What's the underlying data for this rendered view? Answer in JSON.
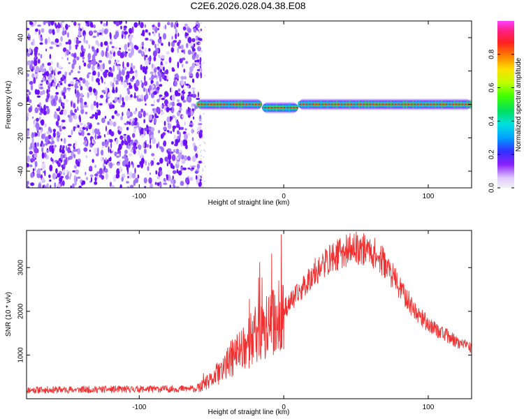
{
  "page_title": "C2E6.2026.028.04.38.E08",
  "colors": {
    "snr_line": "#f03030",
    "spectrum_ridge": "#ff1010"
  },
  "chart_data": [
    {
      "id": "spectrogram",
      "type": "heatmap",
      "title": "C2E6.2026.028.04.38.E08",
      "xlabel": "Height of straight line (km)",
      "ylabel": "Frequency (Hz)",
      "xlim": [
        -178,
        130
      ],
      "ylim": [
        -50,
        50
      ],
      "x_ticks": [
        -100,
        0,
        100
      ],
      "y_ticks": [
        -40,
        -20,
        0,
        20,
        40
      ],
      "noise_region_x": [
        -178,
        -60
      ],
      "ridge": {
        "x_start": -60,
        "x_end": 130,
        "segments": [
          {
            "x": [
              -60,
              -15
            ],
            "freq": 0
          },
          {
            "x": [
              -15,
              10
            ],
            "freq": -2
          },
          {
            "x": [
              10,
              130
            ],
            "freq": 0
          }
        ]
      },
      "colorbar": {
        "label": "Normalized spectral amplitude",
        "range": [
          0.0,
          1.0
        ],
        "ticks": [
          0.0,
          0.2,
          0.4,
          0.6,
          0.8
        ]
      }
    },
    {
      "id": "snr",
      "type": "line",
      "xlabel": "Height of straight line (km)",
      "ylabel": "SNR (10 * v/v)",
      "xlim": [
        -178,
        130
      ],
      "ylim": [
        0,
        3850
      ],
      "x_ticks": [
        -100,
        0,
        100
      ],
      "y_ticks": [
        1000,
        2000,
        3000
      ],
      "series": [
        {
          "name": "SNR",
          "envelope_x": [
            -178,
            -60,
            -50,
            -40,
            -30,
            -20,
            -10,
            0,
            10,
            20,
            30,
            40,
            50,
            60,
            70,
            80,
            90,
            100,
            110,
            120,
            130
          ],
          "envelope_y": [
            200,
            230,
            450,
            800,
            1200,
            1500,
            1750,
            2050,
            2400,
            2850,
            3150,
            3350,
            3450,
            3400,
            3100,
            2550,
            2050,
            1700,
            1500,
            1300,
            1150
          ]
        }
      ]
    }
  ]
}
